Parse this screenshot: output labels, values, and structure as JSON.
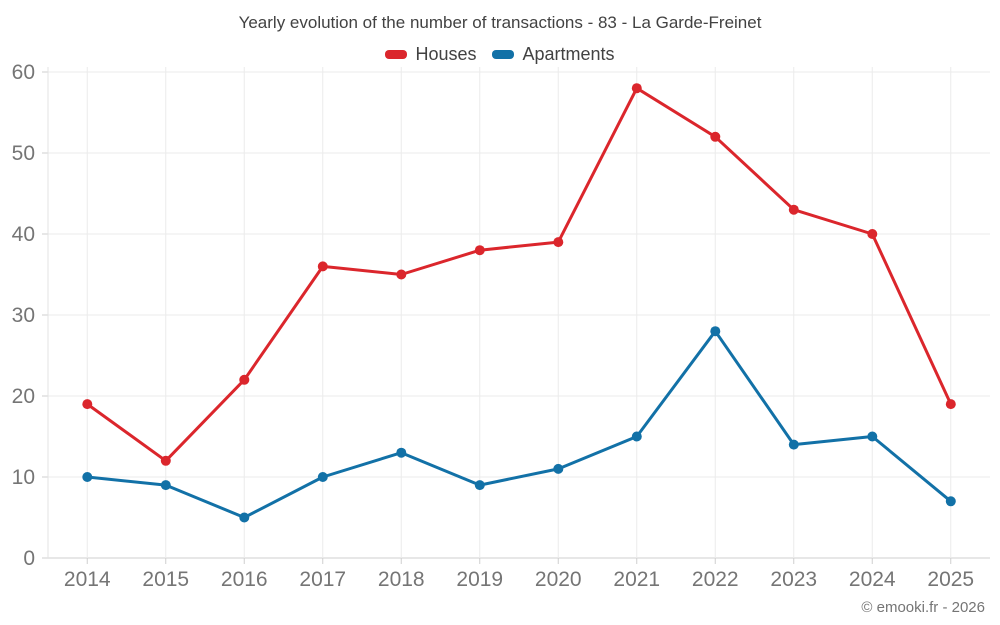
{
  "page": {
    "background": "#ffffff"
  },
  "footer": {
    "credit": "© emooki.fr - 2026"
  },
  "colors": {
    "houses": "#db262c",
    "apartments": "#1271a7",
    "grid": "#ebebeb",
    "axis": "#cfcfcf",
    "plot_border": "#e3e3e3",
    "title_text": "#424242",
    "axis_text": "#757575"
  },
  "chart_data": {
    "type": "line",
    "title": "Yearly evolution of the number of transactions - 83 - La Garde-Freinet",
    "categories": [
      "2014",
      "2015",
      "2016",
      "2017",
      "2018",
      "2019",
      "2020",
      "2021",
      "2022",
      "2023",
      "2024",
      "2025"
    ],
    "series": [
      {
        "name": "Houses",
        "color": "#db262c",
        "values": [
          19,
          12,
          22,
          36,
          35,
          38,
          39,
          58,
          52,
          43,
          40,
          19
        ]
      },
      {
        "name": "Apartments",
        "color": "#1271a7",
        "values": [
          10,
          9,
          5,
          10,
          13,
          9,
          11,
          15,
          28,
          14,
          15,
          7
        ]
      }
    ],
    "xlabel": "",
    "ylabel": "",
    "ylim": [
      0,
      60
    ],
    "yticks": [
      0,
      10,
      20,
      30,
      40,
      50,
      60
    ],
    "grid": true,
    "legend_position": "top",
    "marker_radius": 5,
    "line_width": 3
  }
}
